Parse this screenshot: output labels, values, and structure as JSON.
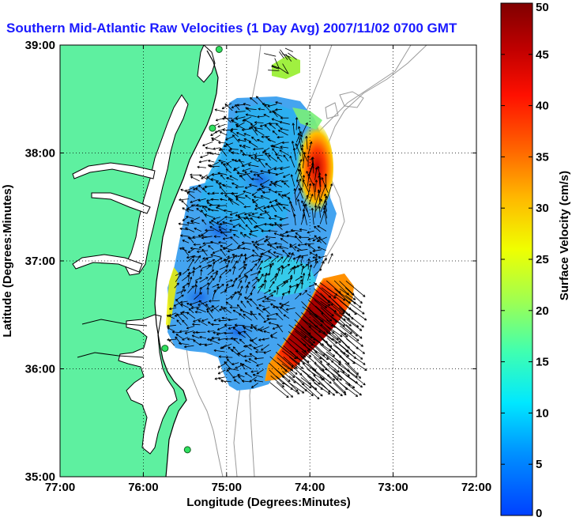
{
  "title": "Southern Mid-Atlantic Raw Velocities (1 Day Avg) 2007/11/02 0700 GMT",
  "title_color": "#1a1aff",
  "map": {
    "x_axis": {
      "label": "Longitude (Degrees:Minutes)",
      "range": [
        -77,
        -72
      ],
      "ticks": [
        {
          "value": -77,
          "label": "77:00"
        },
        {
          "value": -76,
          "label": "76:00"
        },
        {
          "value": -75,
          "label": "75:00"
        },
        {
          "value": -74,
          "label": "74:00"
        },
        {
          "value": -73,
          "label": "73:00"
        },
        {
          "value": -72,
          "label": "72:00"
        }
      ]
    },
    "y_axis": {
      "label": "Latitude (Degrees:Minutes)",
      "range": [
        35,
        39
      ],
      "ticks": [
        {
          "value": 35,
          "label": "35:00"
        },
        {
          "value": 36,
          "label": "36:00"
        },
        {
          "value": 37,
          "label": "37:00"
        },
        {
          "value": 38,
          "label": "38:00"
        },
        {
          "value": 39,
          "label": "39:00"
        }
      ]
    },
    "grid": "dotted",
    "land_color": "#5ef0a0",
    "coastline_color": "#000000",
    "bathymetry_color": "#9a9a9a",
    "radar_sites": [
      {
        "lon": -75.09,
        "lat": 38.96
      },
      {
        "lon": -75.17,
        "lat": 38.23
      },
      {
        "lon": -75.74,
        "lat": 36.19
      },
      {
        "lon": -75.47,
        "lat": 35.25
      }
    ]
  },
  "colorbar": {
    "label": "Surface Velocity (cm/s)",
    "min": 0,
    "max": 50,
    "ticks": [
      0,
      5,
      10,
      15,
      20,
      25,
      30,
      35,
      40,
      45,
      50
    ],
    "tick_labels": [
      "0",
      "5",
      "10",
      "15",
      "20",
      "25",
      "30",
      "35",
      "40",
      "45",
      "50"
    ]
  }
}
